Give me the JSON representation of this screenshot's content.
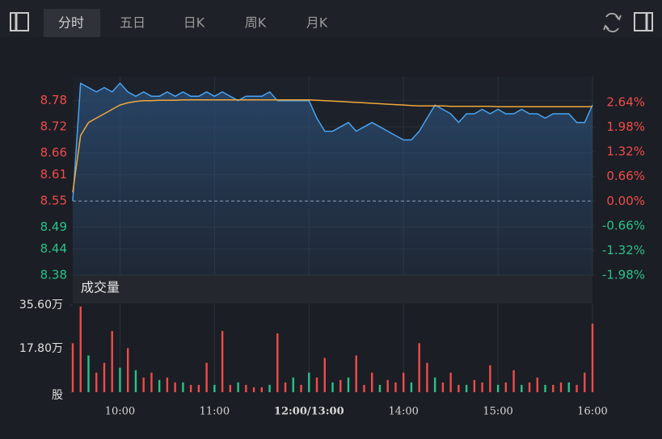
{
  "tabs": [
    "分时",
    "五日",
    "日K",
    "周K",
    "月K"
  ],
  "chart_data": [
    {
      "type": "line",
      "x": [
        0,
        5,
        10,
        15,
        20,
        25,
        30,
        35,
        40,
        45,
        50,
        55,
        60,
        65,
        70,
        75,
        80,
        85,
        90,
        95,
        100,
        105,
        110,
        115,
        120,
        125,
        130,
        135,
        140,
        145,
        150,
        155,
        160,
        165,
        170,
        175,
        180,
        185,
        190,
        195,
        200,
        205,
        210,
        215,
        220,
        225,
        230,
        235,
        240,
        245,
        250,
        255,
        260,
        265,
        270,
        275,
        280,
        285,
        290,
        295,
        300,
        305,
        310,
        315,
        320,
        325,
        330
      ],
      "xlim": [
        0,
        330
      ],
      "xticks": [
        {
          "value": 30,
          "label": "10:00"
        },
        {
          "value": 90,
          "label": "11:00"
        },
        {
          "value": 150,
          "label": "12:00/13:00"
        },
        {
          "value": 210,
          "label": "14:00"
        },
        {
          "value": 270,
          "label": "15:00"
        },
        {
          "value": 330,
          "label": "16:00"
        }
      ],
      "ylim": [
        8.38,
        8.835
      ],
      "yticks": [
        8.78,
        8.72,
        8.66,
        8.61,
        8.55,
        8.49,
        8.44,
        8.38
      ],
      "y2lim": [
        -1.98,
        3.33
      ],
      "y2ticks": [
        {
          "value": 2.64,
          "label": "2.64%"
        },
        {
          "value": 1.98,
          "label": "1.98%"
        },
        {
          "value": 1.32,
          "label": "1.32%"
        },
        {
          "value": 0.66,
          "label": "0.66%"
        },
        {
          "value": 0,
          "label": "0.00%"
        },
        {
          "value": -0.66,
          "label": "-0.66%"
        },
        {
          "value": -1.32,
          "label": "-1.32%"
        },
        {
          "value": -1.98,
          "label": "-1.98%"
        }
      ],
      "up_color": "#f04b4b",
      "down_color": "#2bc28a",
      "series": [
        {
          "color": "#4aa3f0",
          "values": [
            8.55,
            8.82,
            8.81,
            8.8,
            8.81,
            8.8,
            8.82,
            8.8,
            8.79,
            8.8,
            8.79,
            8.79,
            8.8,
            8.79,
            8.8,
            8.79,
            8.79,
            8.8,
            8.79,
            8.8,
            8.79,
            8.78,
            8.79,
            8.79,
            8.79,
            8.8,
            8.78,
            8.78,
            8.78,
            8.78,
            8.78,
            8.74,
            8.71,
            8.71,
            8.72,
            8.73,
            8.71,
            8.72,
            8.73,
            8.72,
            8.71,
            8.7,
            8.69,
            8.69,
            8.71,
            8.74,
            8.77,
            8.76,
            8.75,
            8.73,
            8.75,
            8.75,
            8.76,
            8.75,
            8.76,
            8.75,
            8.75,
            8.76,
            8.75,
            8.75,
            8.74,
            8.75,
            8.75,
            8.75,
            8.73,
            8.73,
            8.77
          ]
        },
        {
          "color": "#f0a83a",
          "values": [
            8.57,
            8.7,
            8.73,
            8.74,
            8.75,
            8.76,
            8.77,
            8.775,
            8.778,
            8.78,
            8.78,
            8.781,
            8.781,
            8.781,
            8.782,
            8.782,
            8.782,
            8.782,
            8.782,
            8.782,
            8.782,
            8.782,
            8.782,
            8.782,
            8.782,
            8.782,
            8.782,
            8.782,
            8.782,
            8.782,
            8.782,
            8.781,
            8.78,
            8.779,
            8.778,
            8.777,
            8.776,
            8.775,
            8.774,
            8.773,
            8.772,
            8.771,
            8.77,
            8.769,
            8.768,
            8.768,
            8.768,
            8.768,
            8.767,
            8.767,
            8.767,
            8.767,
            8.767,
            8.767,
            8.766,
            8.766,
            8.766,
            8.766,
            8.766,
            8.766,
            8.766,
            8.766,
            8.766,
            8.766,
            8.766,
            8.766,
            8.766
          ]
        }
      ]
    },
    {
      "type": "bar",
      "title": "成交量",
      "ylim": [
        0,
        35.6
      ],
      "yticks": [
        {
          "value": 35.6,
          "label": "35.60万"
        },
        {
          "value": 17.8,
          "label": "17.80万"
        },
        {
          "value": 0,
          "label": "股"
        }
      ],
      "values": [
        20,
        35,
        15,
        8,
        12,
        25,
        10,
        18,
        9,
        6,
        8,
        5,
        6,
        4,
        4,
        3,
        3,
        12,
        3,
        25,
        3,
        4,
        3,
        2,
        2,
        3,
        24,
        4,
        6,
        3,
        8,
        6,
        14,
        4,
        5,
        6,
        15,
        3,
        8,
        3,
        5,
        4,
        8,
        4,
        20,
        12,
        6,
        4,
        8,
        3,
        3,
        5,
        4,
        11,
        3,
        4,
        9,
        3,
        4,
        6,
        3,
        3,
        4,
        4,
        3,
        8,
        28
      ],
      "colors": [
        "#f04b4b",
        "#f04b4b",
        "#2bc28a",
        "#f04b4b",
        "#f04b4b",
        "#f04b4b",
        "#2bc28a",
        "#f04b4b",
        "#2bc28a",
        "#f04b4b",
        "#f04b4b",
        "#2bc28a",
        "#f04b4b",
        "#f04b4b",
        "#2bc28a",
        "#f04b4b",
        "#f04b4b",
        "#f04b4b",
        "#2bc28a",
        "#f04b4b",
        "#f04b4b",
        "#2bc28a",
        "#f04b4b",
        "#f04b4b",
        "#f04b4b",
        "#2bc28a",
        "#f04b4b",
        "#f04b4b",
        "#2bc28a",
        "#f04b4b",
        "#2bc28a",
        "#f04b4b",
        "#f04b4b",
        "#2bc28a",
        "#f04b4b",
        "#2bc28a",
        "#f04b4b",
        "#f04b4b",
        "#f04b4b",
        "#2bc28a",
        "#f04b4b",
        "#f04b4b",
        "#f04b4b",
        "#2bc28a",
        "#f04b4b",
        "#f04b4b",
        "#2bc28a",
        "#f04b4b",
        "#f04b4b",
        "#f04b4b",
        "#2bc28a",
        "#f04b4b",
        "#f04b4b",
        "#f04b4b",
        "#2bc28a",
        "#f04b4b",
        "#f04b4b",
        "#2bc28a",
        "#f04b4b",
        "#f04b4b",
        "#2bc28a",
        "#f04b4b",
        "#f04b4b",
        "#2bc28a",
        "#f04b4b",
        "#f04b4b",
        "#f04b4b"
      ]
    }
  ]
}
